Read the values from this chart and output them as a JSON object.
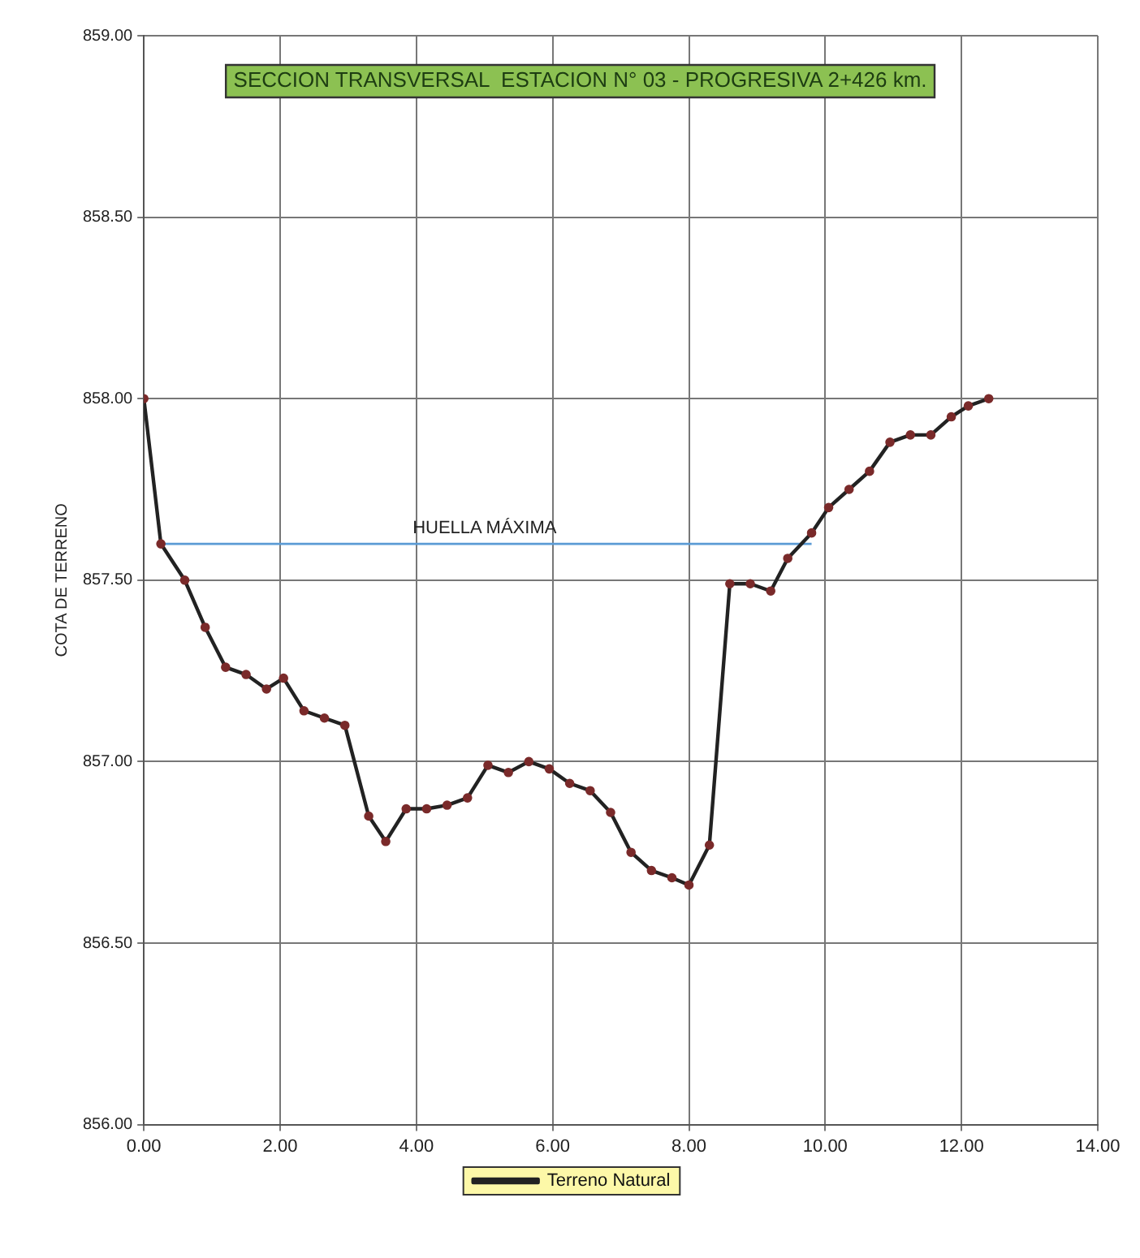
{
  "chart_data": {
    "type": "line",
    "title": "SECCION TRANSVERSAL  ESTACION N° 03 - PROGRESIVA 2+426 km.",
    "ylabel": "COTA DE TERRENO",
    "series": [
      {
        "name": "Terreno Natural",
        "color": "#222222",
        "x": [
          0,
          0.25,
          0.6,
          0.9,
          1.2,
          1.5,
          1.8,
          2.05,
          2.35,
          2.65,
          2.95,
          3.3,
          3.55,
          3.85,
          4.15,
          4.45,
          4.75,
          5.05,
          5.35,
          5.65,
          5.95,
          6.25,
          6.55,
          6.85,
          7.15,
          7.45,
          7.75,
          8.0,
          8.3,
          8.6,
          8.9,
          9.2,
          9.45,
          9.8,
          10.05,
          10.35,
          10.65,
          10.95,
          11.25,
          11.55,
          11.85,
          12.1,
          12.4
        ],
        "values": [
          858.0,
          857.6,
          857.5,
          857.37,
          857.26,
          857.24,
          857.2,
          857.23,
          857.14,
          857.12,
          857.1,
          856.85,
          856.78,
          856.87,
          856.87,
          856.88,
          856.9,
          856.99,
          856.97,
          857.0,
          856.98,
          856.94,
          856.92,
          856.86,
          856.75,
          856.7,
          856.68,
          856.66,
          856.77,
          857.49,
          857.49,
          857.47,
          857.56,
          857.63,
          857.7,
          857.75,
          857.8,
          857.88,
          857.9,
          857.9,
          857.95,
          857.98,
          858.0
        ]
      },
      {
        "color": "#5b9bd5",
        "marker": "none",
        "x": [
          0.25,
          9.8
        ],
        "values": [
          857.6,
          857.6
        ]
      }
    ],
    "annotations": [
      {
        "text": "HUELLA MÁXIMA",
        "x": 5.0,
        "y": 857.6
      }
    ],
    "xlim": [
      0,
      14
    ],
    "xticks": [
      {
        "value": 0,
        "label": "0.00"
      },
      {
        "value": 2,
        "label": "2.00"
      },
      {
        "value": 4,
        "label": "4.00"
      },
      {
        "value": 6,
        "label": "6.00"
      },
      {
        "value": 8,
        "label": "8.00"
      },
      {
        "value": 10,
        "label": "10.00"
      },
      {
        "value": 12,
        "label": "12.00"
      },
      {
        "value": 14,
        "label": "14.00"
      }
    ],
    "ylim": [
      856,
      859
    ],
    "yticks": [
      {
        "value": 856,
        "label": "856.00"
      },
      {
        "value": 856.5,
        "label": "856.50"
      },
      {
        "value": 857,
        "label": "857.00"
      },
      {
        "value": 857.5,
        "label": "857.50"
      },
      {
        "value": 858,
        "label": "858.00"
      },
      {
        "value": 858.5,
        "label": "858.50"
      },
      {
        "value": 859,
        "label": "859.00"
      }
    ],
    "grid": true,
    "legend": "bottom",
    "marker": "circle",
    "line_style": "solid"
  }
}
